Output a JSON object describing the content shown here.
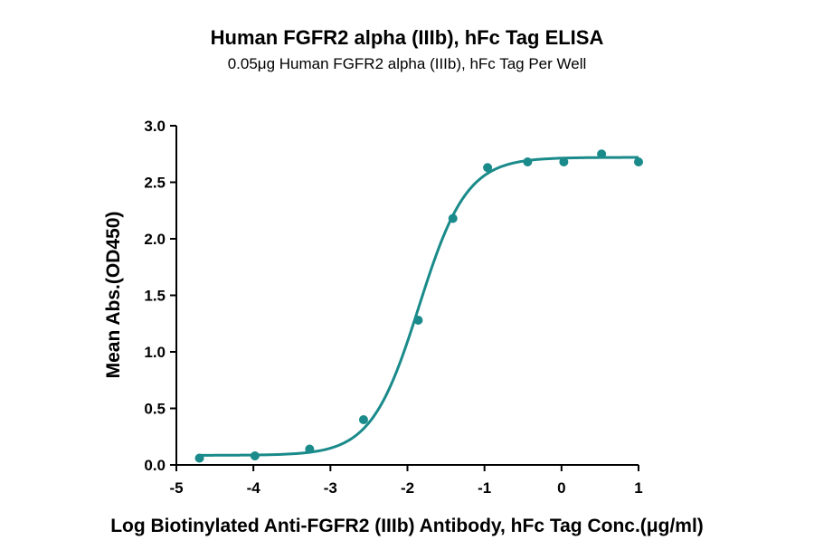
{
  "chart_data": {
    "type": "scatter",
    "title": "Human FGFR2 alpha (IIIb), hFc Tag ELISA",
    "subtitle": "0.05μg Human FGFR2 alpha (IIIb), hFc Tag Per Well",
    "xlabel": "Log Biotinylated Anti-FGFR2 (IIIb) Antibody, hFc Tag Conc.(μg/ml)",
    "ylabel": "Mean Abs.(OD450)",
    "xlim": [
      -5,
      1
    ],
    "ylim": [
      0,
      3.0
    ],
    "xticks": [
      -5,
      -4,
      -3,
      -2,
      -1,
      0,
      1
    ],
    "xtick_labels": [
      "-5",
      "-4",
      "-3",
      "-2",
      "-1",
      "0",
      "1"
    ],
    "yticks": [
      0,
      0.5,
      1.0,
      1.5,
      2.0,
      2.5,
      3.0
    ],
    "ytick_labels": [
      "0.0",
      "0.5",
      "1.0",
      "1.5",
      "2.0",
      "2.5",
      "3.0"
    ],
    "grid": false,
    "color": "#1a8a8a",
    "points": [
      {
        "x": -4.7,
        "y": 0.06
      },
      {
        "x": -3.98,
        "y": 0.08
      },
      {
        "x": -3.27,
        "y": 0.14
      },
      {
        "x": -2.57,
        "y": 0.4
      },
      {
        "x": -1.86,
        "y": 1.28
      },
      {
        "x": -1.41,
        "y": 2.18
      },
      {
        "x": -0.96,
        "y": 2.63
      },
      {
        "x": -0.44,
        "y": 2.68
      },
      {
        "x": 0.03,
        "y": 2.68
      },
      {
        "x": 0.52,
        "y": 2.75
      },
      {
        "x": 1.0,
        "y": 2.68
      }
    ],
    "fit": {
      "model": "4PL",
      "bottom": 0.085,
      "top": 2.72,
      "log_ec50": -1.85,
      "hill_slope": 1.4
    }
  }
}
